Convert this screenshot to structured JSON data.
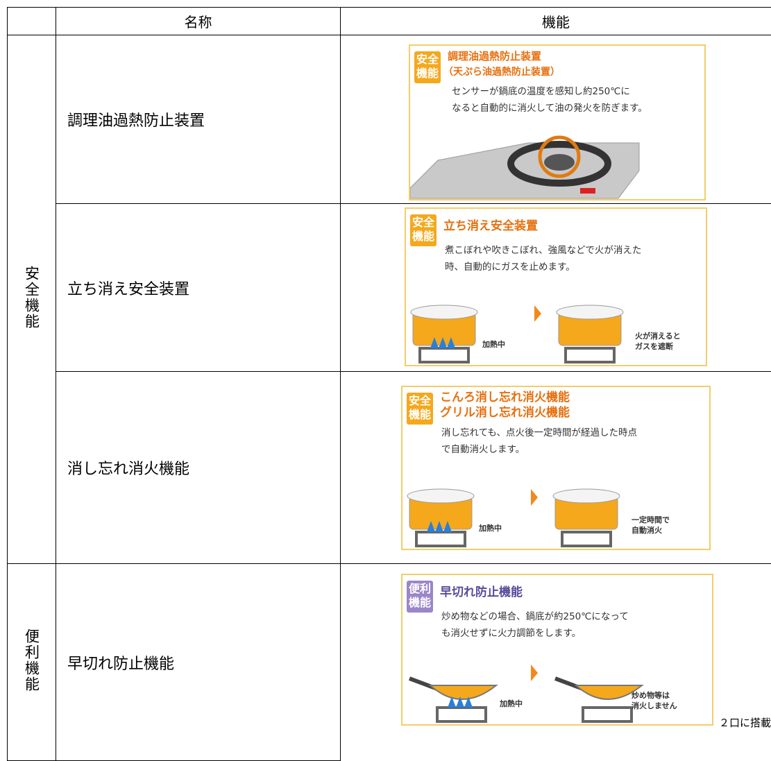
{
  "table": {
    "header": {
      "name": "名称",
      "function": "機能"
    },
    "groups": [
      {
        "label": "安全機能",
        "kind": "safety",
        "rows": [
          {
            "name": "調理油過熱防止装置",
            "panel": {
              "badge": [
                "安全",
                "機能"
              ],
              "title": [
                "調理油過熱防止装置",
                "（天ぷら油過熱防止装置）"
              ],
              "description": [
                "センサーが鍋底の温度を感知し約250℃に",
                "なると自動的に消火して油の発火を防ぎます。"
              ]
            }
          },
          {
            "name": "立ち消え安全装置",
            "panel": {
              "badge": [
                "安全",
                "機能"
              ],
              "title": [
                "立ち消え安全装置"
              ],
              "description": [
                "煮こぼれや吹きこぼれ、強風などで火が消えた",
                "時、自動的にガスを止めます。"
              ],
              "before": "加熱中",
              "after": [
                "火が消えると",
                "ガスを遮断"
              ]
            }
          },
          {
            "name": "消し忘れ消火機能",
            "panel": {
              "badge": [
                "安全",
                "機能"
              ],
              "title": [
                "こんろ消し忘れ消火機能",
                "グリル消し忘れ消火機能"
              ],
              "description": [
                "消し忘れても、点火後一定時間が経過した時点",
                "で自動消火します。"
              ],
              "before": "加熱中",
              "after": [
                "一定時間で",
                "自動消火"
              ]
            }
          }
        ]
      },
      {
        "label": "便利機能",
        "kind": "convenience",
        "rows": [
          {
            "name": "早切れ防止機能",
            "panel": {
              "badge": [
                "便利",
                "機能"
              ],
              "title": [
                "早切れ防止機能"
              ],
              "description": [
                "炒め物などの場合、鍋底が約250℃になって",
                "も消火せずに火力調節をします。"
              ],
              "before": "加熱中",
              "after": [
                "炒め物等は",
                "消火しません"
              ]
            },
            "note": "２口に搭載"
          }
        ]
      }
    ]
  }
}
